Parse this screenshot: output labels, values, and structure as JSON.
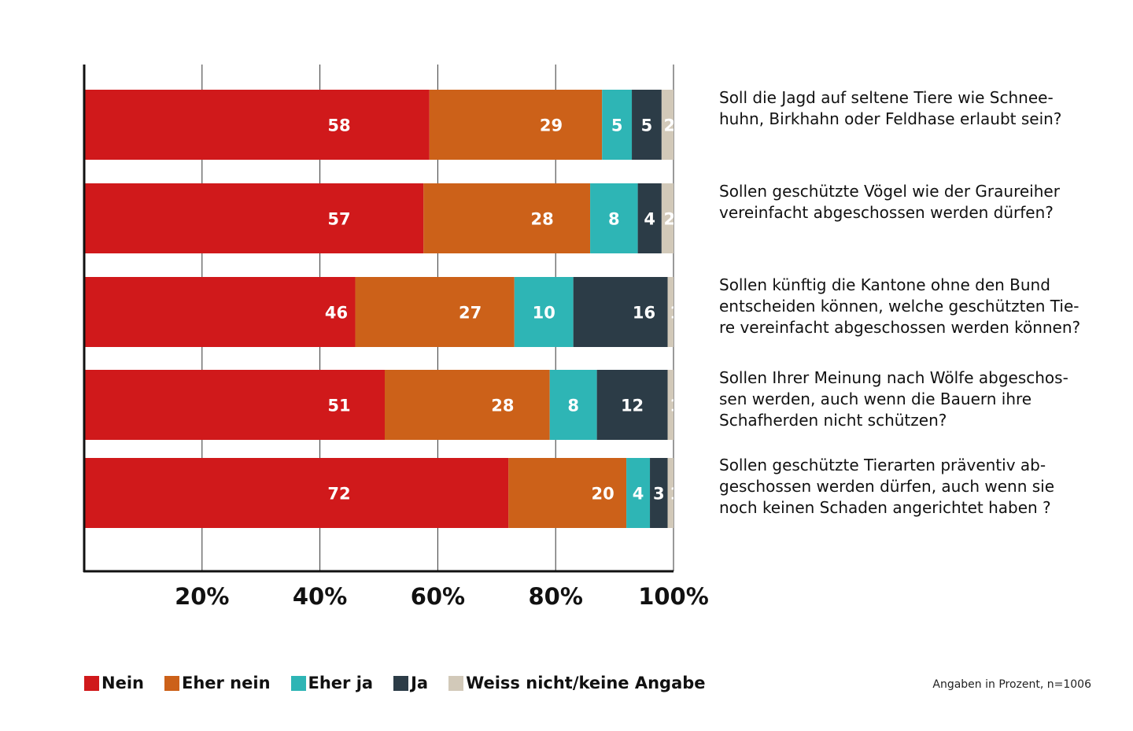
{
  "chart_data": {
    "type": "bar",
    "orientation": "horizontal",
    "stacked": true,
    "categories": [
      "Soll die Jagd auf seltene Tiere wie Schnee-huhn, Birkhahn oder Feldhase erlaubt sein?",
      "Sollen geschützte Vögel wie der Graureiher vereinfacht abgeschossen werden dürfen?",
      "Sollen künftig die Kantone ohne den Bund entscheiden können, welche geschützten Tie-re vereinfacht abgeschossen werden können?",
      "Sollen Ihrer Meinung nach Wölfe abgeschos-sen werden, auch wenn die Bauern ihre Schafherden nicht schützen?",
      "Sollen geschützte Tierarten präventiv ab-geschossen werden dürfen, auch wenn sie noch keinen Schaden angerichtet haben ?"
    ],
    "series": [
      {
        "name": "Nein",
        "color": "#d0191b",
        "values": [
          58,
          57,
          46,
          51,
          72
        ]
      },
      {
        "name": "Eher nein",
        "color": "#cc6119",
        "values": [
          29,
          28,
          27,
          28,
          20
        ]
      },
      {
        "name": "Eher ja",
        "color": "#2eb5b5",
        "values": [
          5,
          8,
          10,
          8,
          4
        ]
      },
      {
        "name": "Ja",
        "color": "#2c3c47",
        "values": [
          5,
          4,
          16,
          12,
          3
        ]
      },
      {
        "name": "Weiss nicht/keine Angabe",
        "color": "#d2c9b9",
        "values": [
          2,
          2,
          1,
          1,
          1
        ]
      }
    ],
    "xticks": [
      "20%",
      "40%",
      "60%",
      "80%",
      "100%"
    ],
    "xlim": [
      0,
      100
    ],
    "grid": true,
    "legend": "bottom",
    "note": "Angaben in Prozent, n=1006"
  },
  "questions": [
    [
      "Soll die Jagd auf seltene Tiere wie Schnee-",
      "huhn, Birkhahn oder Feldhase erlaubt sein?"
    ],
    [
      "Sollen geschützte Vögel wie der Graureiher",
      "vereinfacht abgeschossen werden dürfen?"
    ],
    [
      "Sollen künftig die Kantone ohne den Bund",
      "entscheiden können, welche geschützten Tie-",
      "re vereinfacht abgeschossen werden können?"
    ],
    [
      "Sollen Ihrer Meinung nach Wölfe abgeschos-",
      "sen werden, auch wenn die Bauern ihre",
      "Schafherden nicht schützen?"
    ],
    [
      "Sollen geschützte Tierarten präventiv ab-",
      "geschossen werden dürfen, auch wenn sie",
      "noch keinen Schaden angerichtet haben ?"
    ]
  ]
}
